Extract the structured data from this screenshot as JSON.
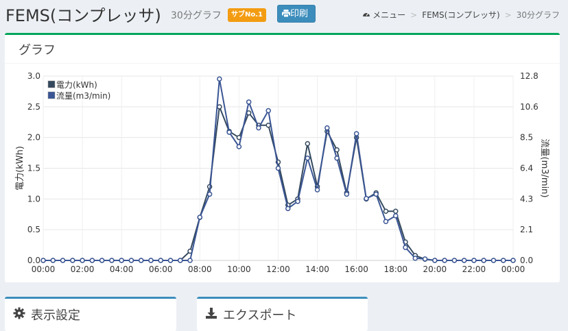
{
  "header": {
    "title": "FEMS(コンプレッサ)",
    "subtitle": "30分グラフ",
    "badge": "サブNo.1",
    "print_label": "印刷"
  },
  "breadcrumb": {
    "items": [
      "メニュー",
      "FEMS(コンプレッサ)",
      "30分グラフ"
    ],
    "separator": ">"
  },
  "panel": {
    "title": "グラフ"
  },
  "bottom_panels": {
    "display_settings": "表示設定",
    "export": "エクスポート"
  },
  "colors": {
    "accent_green": "#00a65a",
    "badge_orange": "#f39c12",
    "primary_blue": "#3c8dbc",
    "series1": "#34495e",
    "series2": "#3a5594"
  },
  "chart_data": {
    "type": "line",
    "x": [
      "00:00",
      "00:30",
      "01:00",
      "01:30",
      "02:00",
      "02:30",
      "03:00",
      "03:30",
      "04:00",
      "04:30",
      "05:00",
      "05:30",
      "06:00",
      "06:30",
      "07:00",
      "07:30",
      "08:00",
      "08:30",
      "09:00",
      "09:30",
      "10:00",
      "10:30",
      "11:00",
      "11:30",
      "12:00",
      "12:30",
      "13:00",
      "13:30",
      "14:00",
      "14:30",
      "15:00",
      "15:30",
      "16:00",
      "16:30",
      "17:00",
      "17:30",
      "18:00",
      "18:30",
      "19:00",
      "19:30",
      "20:00",
      "20:30",
      "21:00",
      "21:30",
      "22:00",
      "22:30",
      "23:00",
      "23:30",
      "00:00"
    ],
    "xticks": [
      "00:00",
      "02:00",
      "04:00",
      "06:00",
      "08:00",
      "10:00",
      "12:00",
      "14:00",
      "16:00",
      "18:00",
      "20:00",
      "22:00",
      "00:00"
    ],
    "y_left": {
      "label": "電力(kWh)",
      "ticks": [
        "0.0",
        "0.5",
        "1.0",
        "1.5",
        "2.0",
        "2.5",
        "3.0"
      ],
      "range": [
        0,
        3.0
      ]
    },
    "y_right": {
      "label": "流量(m3/min)",
      "ticks": [
        "0.0",
        "2.1",
        "4.3",
        "6.4",
        "8.5",
        "10.6",
        "12.8"
      ],
      "range": [
        0,
        12.8
      ]
    },
    "legend_position": "top-left",
    "grid": true,
    "series": [
      {
        "name": "電力(kWh)",
        "axis": "left",
        "values": [
          0,
          0,
          0,
          0,
          0,
          0,
          0,
          0,
          0,
          0,
          0,
          0,
          0,
          0,
          0,
          0.15,
          0.7,
          1.2,
          2.5,
          2.1,
          2.0,
          2.4,
          2.2,
          2.2,
          1.6,
          0.9,
          1.0,
          1.9,
          1.2,
          2.1,
          1.8,
          1.1,
          2.0,
          1.0,
          1.1,
          0.8,
          0.8,
          0.3,
          0.08,
          0.02,
          0,
          0,
          0,
          0,
          0,
          0,
          0,
          0,
          0
        ]
      },
      {
        "name": "流量(m3/min)",
        "axis": "right",
        "values": [
          0,
          0,
          0,
          0,
          0,
          0,
          0,
          0,
          0,
          0,
          0,
          0,
          0,
          0,
          0,
          0,
          3.0,
          4.6,
          12.6,
          8.9,
          7.9,
          11.0,
          9.2,
          10.4,
          6.4,
          3.6,
          4.1,
          7.1,
          4.9,
          9.2,
          7.1,
          4.6,
          8.8,
          4.3,
          4.6,
          2.7,
          3.1,
          0.9,
          0.15,
          0.1,
          0,
          0,
          0,
          0,
          0,
          0,
          0,
          0,
          0
        ]
      }
    ]
  }
}
